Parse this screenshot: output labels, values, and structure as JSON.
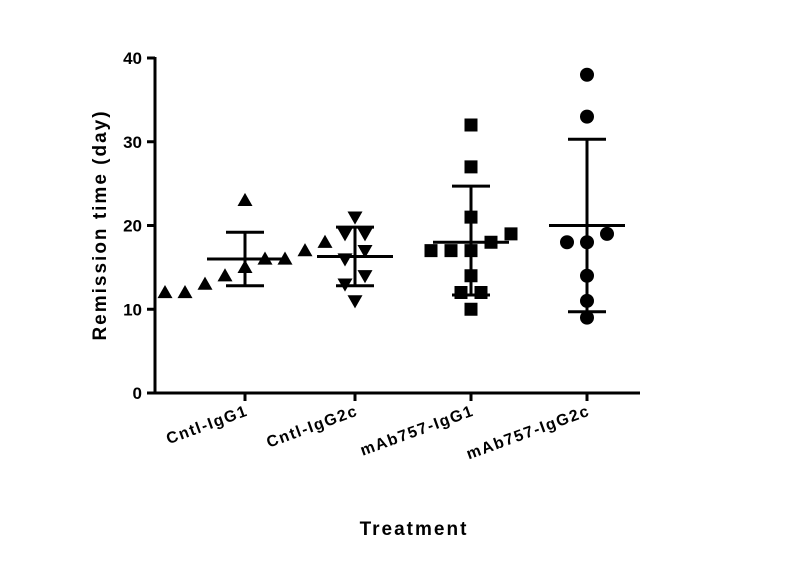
{
  "chart_data": {
    "type": "scatter",
    "xlabel": "Treatment",
    "ylabel": "Remission time (day)",
    "ylim": [
      0,
      40
    ],
    "yticks": [
      0,
      10,
      20,
      30,
      40
    ],
    "grid": false,
    "categories": [
      "Cntl-IgG1",
      "Cntl-IgG2c",
      "mAb757-IgG1",
      "mAb757-IgG2c"
    ],
    "series": [
      {
        "category": "Cntl-IgG1",
        "marker": "triangle-up",
        "values": [
          23,
          18,
          17,
          16,
          16,
          15,
          14,
          13,
          12,
          12
        ],
        "mean": 16,
        "sd_upper": 19.2,
        "sd_lower": 12.8
      },
      {
        "category": "Cntl-IgG2c",
        "marker": "triangle-down",
        "values": [
          21,
          19,
          19,
          17,
          16,
          14,
          13,
          11
        ],
        "mean": 16.3,
        "sd_upper": 19.8,
        "sd_lower": 12.8
      },
      {
        "category": "mAb757-IgG1",
        "marker": "square",
        "values": [
          32,
          27,
          21,
          19,
          18,
          17,
          17,
          17,
          14,
          12,
          12,
          10
        ],
        "mean": 18,
        "sd_upper": 24.7,
        "sd_lower": 11.7
      },
      {
        "category": "mAb757-IgG2c",
        "marker": "circle",
        "values": [
          38,
          33,
          19,
          18,
          18,
          14,
          11,
          9
        ],
        "mean": 20,
        "sd_upper": 30.3,
        "sd_lower": 9.7
      }
    ]
  }
}
